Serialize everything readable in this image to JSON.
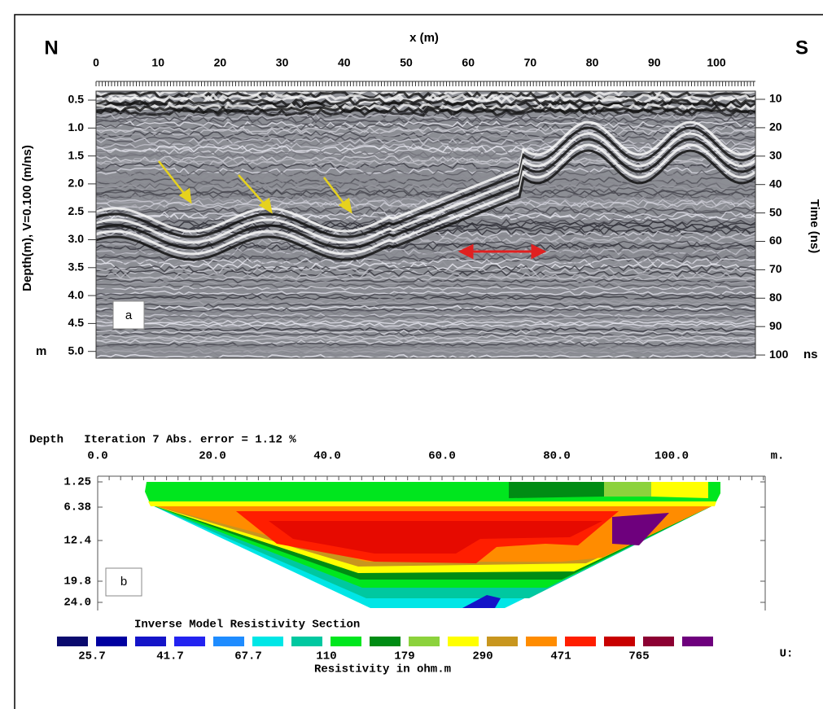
{
  "panel_a": {
    "north": "N",
    "south": "S",
    "x_label": "x (m)",
    "x_ticks": [
      "0",
      "10",
      "20",
      "30",
      "40",
      "50",
      "60",
      "70",
      "80",
      "90",
      "100"
    ],
    "y_label": "Depth(m), V=0.100 (m/ns)",
    "depth_ticks": [
      "0.5",
      "1.0",
      "1.5",
      "2.0",
      "2.5",
      "3.0",
      "3.5",
      "4.0",
      "4.5",
      "5.0"
    ],
    "depth_unit": "m",
    "y2_label": "Time (ns)",
    "time_ticks": [
      "10",
      "20",
      "30",
      "40",
      "50",
      "60",
      "70",
      "80",
      "90",
      "100"
    ],
    "time_unit": "ns",
    "panel_label": "a"
  },
  "panel_b": {
    "header": "Depth   Iteration 7 Abs. error = 1.12 %",
    "x_ticks": [
      "0.0",
      "20.0",
      "40.0",
      "60.0",
      "80.0",
      "100.0"
    ],
    "x_unit": "m.",
    "depth_ticks": [
      "1.25",
      "6.38",
      "12.4",
      "19.8",
      "24.0"
    ],
    "title": "Inverse Model Resistivity Section",
    "legend_colors": [
      "#0a0a6e",
      "#0000a0",
      "#1414c8",
      "#2323f0",
      "#1e8cff",
      "#00e6e6",
      "#00c8a0",
      "#00e61e",
      "#008c14",
      "#8cd23c",
      "#ffff00",
      "#c8961e",
      "#ff8c00",
      "#ff1e00",
      "#c80000",
      "#8c0032",
      "#6e007d"
    ],
    "legend_labels": [
      "25.7",
      "41.7",
      "67.7",
      "110",
      "179",
      "290",
      "471",
      "765"
    ],
    "legend_title": "Resistivity in ohm.m",
    "panel_label": "b",
    "corner_text": "U:"
  }
}
